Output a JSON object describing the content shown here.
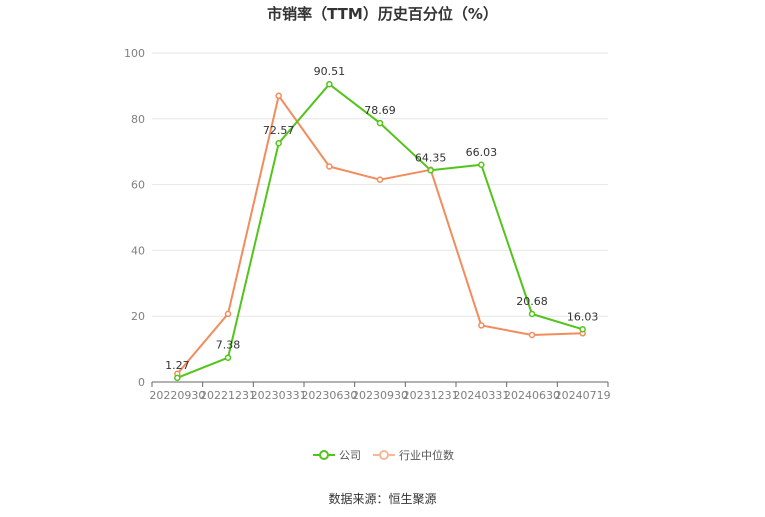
{
  "title": "市销率（TTM）历史百分位（%）",
  "source": "数据来源：恒生聚源",
  "chart_data": {
    "type": "line",
    "categories": [
      "20220930",
      "20221231",
      "20230331",
      "20230630",
      "20230930",
      "20231231",
      "20240331",
      "20240630",
      "20240719"
    ],
    "ylim": [
      0,
      100
    ],
    "yticks": [
      0,
      20,
      40,
      60,
      80,
      100
    ],
    "grid": true,
    "legend_position": "bottom",
    "series": [
      {
        "name": "公司",
        "color": "#52c41a",
        "values": [
          1.27,
          7.38,
          72.57,
          90.51,
          78.69,
          64.35,
          66.03,
          20.68,
          16.03
        ],
        "labels": [
          "1.27",
          "7.38",
          "72.57",
          "90.51",
          "78.69",
          "64.35",
          "66.03",
          "20.68",
          "16.03"
        ]
      },
      {
        "name": "行业中位数",
        "color": "#f28c5c",
        "values": [
          2.5,
          20.7,
          87.0,
          65.5,
          61.5,
          64.5,
          17.2,
          14.3,
          14.8
        ]
      }
    ]
  }
}
